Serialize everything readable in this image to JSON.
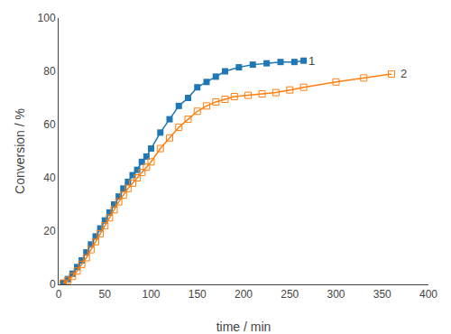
{
  "chart_data": {
    "type": "line",
    "xlabel": "time / min",
    "ylabel": "Conversion / %",
    "xlim": [
      0,
      400
    ],
    "ylim": [
      0,
      100
    ],
    "xticks": [
      0,
      50,
      100,
      150,
      200,
      250,
      300,
      350,
      400
    ],
    "yticks": [
      0,
      20,
      40,
      60,
      80,
      100
    ],
    "grid": false,
    "series": [
      {
        "x": [
          5,
          10,
          15,
          20,
          25,
          30,
          35,
          40,
          45,
          50,
          55,
          60,
          65,
          70,
          75,
          80,
          85,
          90,
          95,
          100,
          110,
          120,
          130,
          140,
          150,
          160,
          170,
          180,
          195,
          210,
          225,
          240,
          255,
          265
        ],
        "values": [
          0.5,
          2,
          4,
          6.5,
          9,
          12,
          15,
          18,
          21,
          24,
          27,
          30,
          33,
          36,
          38.5,
          41,
          43,
          46,
          48,
          51,
          57,
          62,
          67,
          70,
          74,
          76,
          78,
          80,
          81.5,
          82.5,
          83,
          83.5,
          83.5,
          84
        ],
        "marker": "square",
        "line_style": "solid"
      },
      {
        "x": [
          5,
          10,
          15,
          20,
          25,
          30,
          35,
          40,
          45,
          50,
          55,
          60,
          65,
          70,
          75,
          80,
          85,
          90,
          95,
          100,
          110,
          120,
          130,
          140,
          150,
          160,
          170,
          180,
          190,
          205,
          220,
          235,
          250,
          265,
          300,
          330,
          360
        ],
        "values": [
          0.5,
          1.5,
          3,
          5,
          7.5,
          10,
          13,
          16,
          19,
          22,
          25,
          28,
          31,
          33.5,
          36,
          38,
          40,
          42,
          44,
          46,
          51,
          55,
          59,
          62,
          65,
          67,
          68.5,
          69.5,
          70.5,
          71,
          71.5,
          72,
          73,
          74,
          76,
          77.5,
          79
        ],
        "marker": "square-open",
        "line_style": "solid"
      }
    ],
    "annotations": [
      {
        "text": "1",
        "x": 268,
        "y": 84
      },
      {
        "text": "2",
        "x": 368,
        "y": 79
      }
    ]
  }
}
